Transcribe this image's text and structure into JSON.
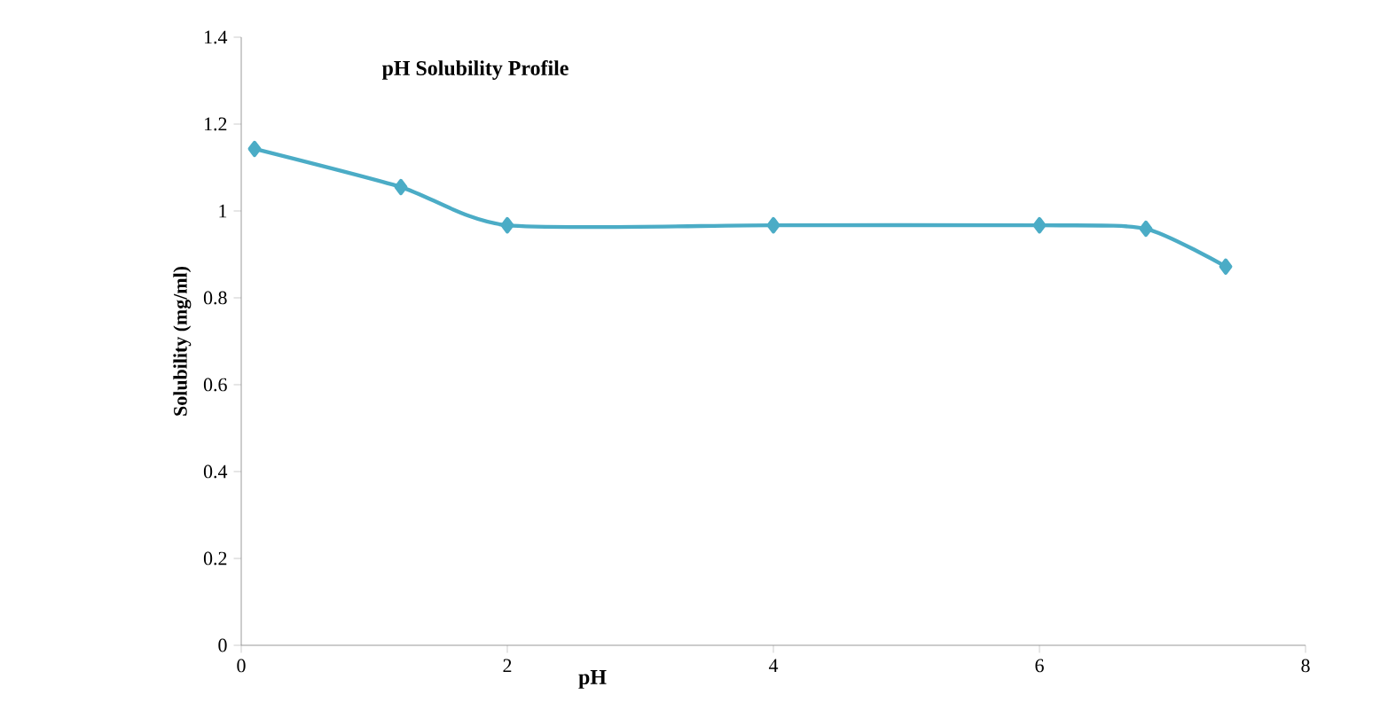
{
  "chart_data": {
    "type": "line",
    "title": "pH Solubility Profile",
    "xlabel": "pH",
    "ylabel": "Solubility (mg/ml)",
    "x": [
      0.1,
      1.2,
      2,
      4,
      6,
      6.8,
      7.4
    ],
    "values": [
      1.143,
      1.055,
      0.967,
      0.967,
      0.967,
      0.959,
      0.872
    ],
    "color": "#4bacc6",
    "marker": "diamond",
    "xlim": [
      0,
      8
    ],
    "xticks": [
      0,
      2,
      4,
      6,
      8
    ],
    "ylim": [
      0,
      1.4
    ],
    "yticks": [
      0,
      0.2,
      0.4,
      0.6,
      0.8,
      1,
      1.2,
      1.4
    ]
  }
}
